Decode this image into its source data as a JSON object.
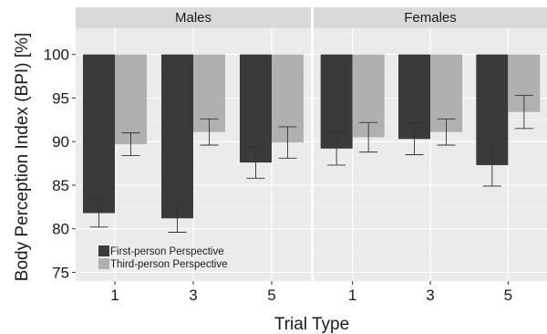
{
  "chart_data": {
    "type": "bar",
    "title": "",
    "xlabel": "Trial Type",
    "ylabel": "Body Perception Index (BPI) [%]",
    "ylim": [
      74,
      103
    ],
    "yticks": [
      75,
      80,
      85,
      90,
      95,
      100
    ],
    "bar_baseline": 100,
    "grid": true,
    "legend_position": "bottom-left inside first panel",
    "categories": [
      "1",
      "3",
      "5"
    ],
    "series_colors": [
      "#3a3a3a",
      "#b0b0b0"
    ],
    "series": [
      {
        "name": "First-person Perspective"
      },
      {
        "name": "Third-person Perspective"
      }
    ],
    "panels": [
      {
        "label": "Males",
        "values": {
          "First-person Perspective": [
            81.8,
            81.2,
            87.6
          ],
          "Third-person Perspective": [
            89.7,
            91.1,
            89.9
          ]
        },
        "errors": {
          "First-person Perspective": [
            [
              80.2,
              83.4
            ],
            [
              79.6,
              82.8
            ],
            [
              85.8,
              89.4
            ]
          ],
          "Third-person Perspective": [
            [
              88.4,
              91.0
            ],
            [
              89.6,
              92.6
            ],
            [
              88.1,
              91.7
            ]
          ]
        }
      },
      {
        "label": "Females",
        "values": {
          "First-person Perspective": [
            89.2,
            90.3,
            87.3
          ],
          "Third-person Perspective": [
            90.5,
            91.1,
            93.4
          ]
        },
        "errors": {
          "First-person Perspective": [
            [
              87.3,
              91.1
            ],
            [
              88.5,
              92.1
            ],
            [
              84.9,
              89.7
            ]
          ],
          "Third-person Perspective": [
            [
              88.8,
              92.2
            ],
            [
              89.6,
              92.6
            ],
            [
              91.5,
              95.3
            ]
          ]
        }
      }
    ]
  }
}
